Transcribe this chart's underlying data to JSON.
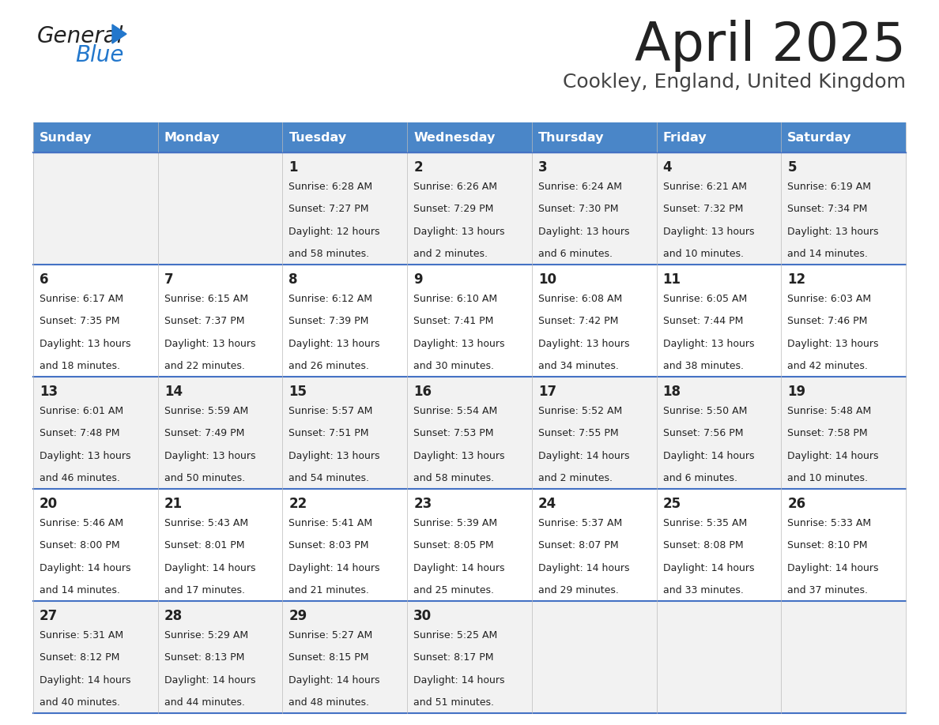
{
  "title": "April 2025",
  "subtitle": "Cookley, England, United Kingdom",
  "days_of_week": [
    "Sunday",
    "Monday",
    "Tuesday",
    "Wednesday",
    "Thursday",
    "Friday",
    "Saturday"
  ],
  "header_bg": "#4a86c8",
  "header_text": "#ffffff",
  "cell_bg_odd": "#f2f2f2",
  "cell_bg_even": "#ffffff",
  "border_color": "#4472c4",
  "title_color": "#222222",
  "subtitle_color": "#444444",
  "day_text_color": "#222222",
  "logo_general_color": "#222222",
  "logo_blue_color": "#2277cc",
  "logo_triangle_color": "#2277cc",
  "calendar": [
    [
      {
        "day": null,
        "sunrise": null,
        "sunset": null,
        "daylight": null
      },
      {
        "day": null,
        "sunrise": null,
        "sunset": null,
        "daylight": null
      },
      {
        "day": 1,
        "sunrise": "6:28 AM",
        "sunset": "7:27 PM",
        "daylight": "12 hours\nand 58 minutes."
      },
      {
        "day": 2,
        "sunrise": "6:26 AM",
        "sunset": "7:29 PM",
        "daylight": "13 hours\nand 2 minutes."
      },
      {
        "day": 3,
        "sunrise": "6:24 AM",
        "sunset": "7:30 PM",
        "daylight": "13 hours\nand 6 minutes."
      },
      {
        "day": 4,
        "sunrise": "6:21 AM",
        "sunset": "7:32 PM",
        "daylight": "13 hours\nand 10 minutes."
      },
      {
        "day": 5,
        "sunrise": "6:19 AM",
        "sunset": "7:34 PM",
        "daylight": "13 hours\nand 14 minutes."
      }
    ],
    [
      {
        "day": 6,
        "sunrise": "6:17 AM",
        "sunset": "7:35 PM",
        "daylight": "13 hours\nand 18 minutes."
      },
      {
        "day": 7,
        "sunrise": "6:15 AM",
        "sunset": "7:37 PM",
        "daylight": "13 hours\nand 22 minutes."
      },
      {
        "day": 8,
        "sunrise": "6:12 AM",
        "sunset": "7:39 PM",
        "daylight": "13 hours\nand 26 minutes."
      },
      {
        "day": 9,
        "sunrise": "6:10 AM",
        "sunset": "7:41 PM",
        "daylight": "13 hours\nand 30 minutes."
      },
      {
        "day": 10,
        "sunrise": "6:08 AM",
        "sunset": "7:42 PM",
        "daylight": "13 hours\nand 34 minutes."
      },
      {
        "day": 11,
        "sunrise": "6:05 AM",
        "sunset": "7:44 PM",
        "daylight": "13 hours\nand 38 minutes."
      },
      {
        "day": 12,
        "sunrise": "6:03 AM",
        "sunset": "7:46 PM",
        "daylight": "13 hours\nand 42 minutes."
      }
    ],
    [
      {
        "day": 13,
        "sunrise": "6:01 AM",
        "sunset": "7:48 PM",
        "daylight": "13 hours\nand 46 minutes."
      },
      {
        "day": 14,
        "sunrise": "5:59 AM",
        "sunset": "7:49 PM",
        "daylight": "13 hours\nand 50 minutes."
      },
      {
        "day": 15,
        "sunrise": "5:57 AM",
        "sunset": "7:51 PM",
        "daylight": "13 hours\nand 54 minutes."
      },
      {
        "day": 16,
        "sunrise": "5:54 AM",
        "sunset": "7:53 PM",
        "daylight": "13 hours\nand 58 minutes."
      },
      {
        "day": 17,
        "sunrise": "5:52 AM",
        "sunset": "7:55 PM",
        "daylight": "14 hours\nand 2 minutes."
      },
      {
        "day": 18,
        "sunrise": "5:50 AM",
        "sunset": "7:56 PM",
        "daylight": "14 hours\nand 6 minutes."
      },
      {
        "day": 19,
        "sunrise": "5:48 AM",
        "sunset": "7:58 PM",
        "daylight": "14 hours\nand 10 minutes."
      }
    ],
    [
      {
        "day": 20,
        "sunrise": "5:46 AM",
        "sunset": "8:00 PM",
        "daylight": "14 hours\nand 14 minutes."
      },
      {
        "day": 21,
        "sunrise": "5:43 AM",
        "sunset": "8:01 PM",
        "daylight": "14 hours\nand 17 minutes."
      },
      {
        "day": 22,
        "sunrise": "5:41 AM",
        "sunset": "8:03 PM",
        "daylight": "14 hours\nand 21 minutes."
      },
      {
        "day": 23,
        "sunrise": "5:39 AM",
        "sunset": "8:05 PM",
        "daylight": "14 hours\nand 25 minutes."
      },
      {
        "day": 24,
        "sunrise": "5:37 AM",
        "sunset": "8:07 PM",
        "daylight": "14 hours\nand 29 minutes."
      },
      {
        "day": 25,
        "sunrise": "5:35 AM",
        "sunset": "8:08 PM",
        "daylight": "14 hours\nand 33 minutes."
      },
      {
        "day": 26,
        "sunrise": "5:33 AM",
        "sunset": "8:10 PM",
        "daylight": "14 hours\nand 37 minutes."
      }
    ],
    [
      {
        "day": 27,
        "sunrise": "5:31 AM",
        "sunset": "8:12 PM",
        "daylight": "14 hours\nand 40 minutes."
      },
      {
        "day": 28,
        "sunrise": "5:29 AM",
        "sunset": "8:13 PM",
        "daylight": "14 hours\nand 44 minutes."
      },
      {
        "day": 29,
        "sunrise": "5:27 AM",
        "sunset": "8:15 PM",
        "daylight": "14 hours\nand 48 minutes."
      },
      {
        "day": 30,
        "sunrise": "5:25 AM",
        "sunset": "8:17 PM",
        "daylight": "14 hours\nand 51 minutes."
      },
      {
        "day": null,
        "sunrise": null,
        "sunset": null,
        "daylight": null
      },
      {
        "day": null,
        "sunrise": null,
        "sunset": null,
        "daylight": null
      },
      {
        "day": null,
        "sunrise": null,
        "sunset": null,
        "daylight": null
      }
    ]
  ]
}
